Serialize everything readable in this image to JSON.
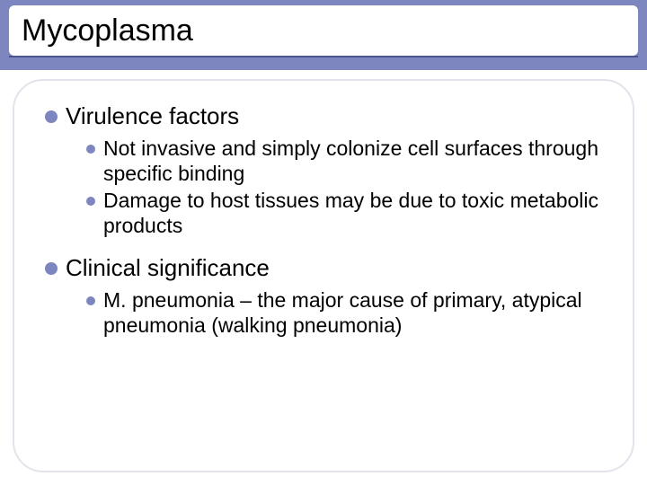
{
  "colors": {
    "band": "#7d86bf",
    "underline": "#4a5590",
    "box_border": "#e4e2ea",
    "bullet": "#7d86bf",
    "text": "#000000",
    "background": "#ffffff"
  },
  "title": "Mycoplasma",
  "typography": {
    "title_fontsize": 34,
    "heading_fontsize": 26,
    "body_fontsize": 23,
    "font_family": "Arial"
  },
  "sections": [
    {
      "heading": "Virulence factors",
      "items": [
        "Not invasive and simply colonize cell surfaces through specific binding",
        "Damage to host tissues may be due to toxic metabolic products"
      ]
    },
    {
      "heading": "Clinical significance",
      "items": [
        "M. pneumonia – the major cause of primary, atypical pneumonia (walking pneumonia)"
      ]
    }
  ]
}
